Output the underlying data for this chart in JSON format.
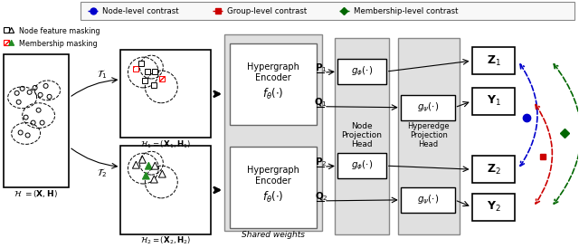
{
  "bg_color": "#ffffff",
  "legend_items": [
    {
      "label": "Node-level contrast",
      "color": "#0000cc",
      "marker": "o"
    },
    {
      "label": "Group-level contrast",
      "color": "#cc0000",
      "marker": "s"
    },
    {
      "label": "Membership-level contrast",
      "color": "#006600",
      "marker": "D"
    }
  ]
}
